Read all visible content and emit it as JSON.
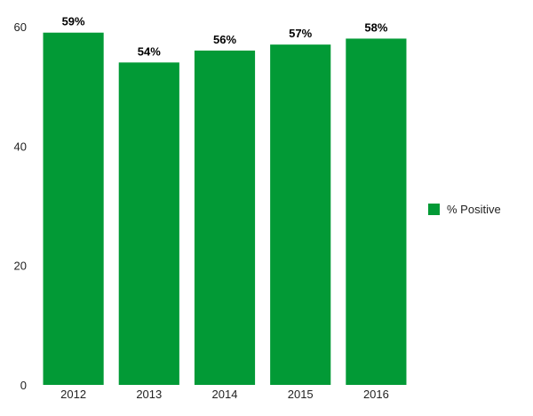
{
  "chart_data": {
    "type": "bar",
    "categories": [
      "2012",
      "2013",
      "2014",
      "2015",
      "2016"
    ],
    "series": [
      {
        "name": "% Positive",
        "values": [
          59,
          54,
          56,
          57,
          58
        ],
        "color": "#029a36"
      }
    ],
    "data_labels": [
      "59%",
      "54%",
      "56%",
      "57%",
      "58%"
    ],
    "ylim": [
      0,
      60
    ],
    "yticks": [
      0,
      20,
      40,
      60
    ],
    "grid": false,
    "legend": "right"
  }
}
